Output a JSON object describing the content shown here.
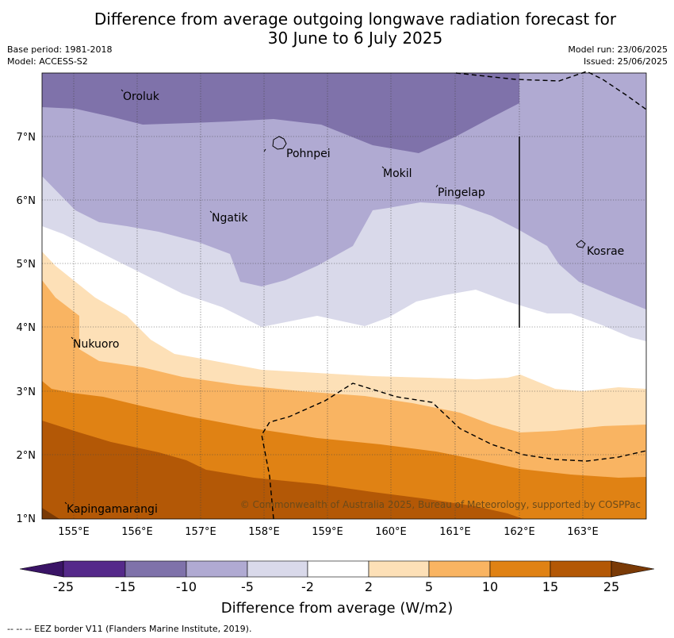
{
  "header": {
    "title_line1": "Difference from average outgoing longwave radiation forecast for",
    "title_line2": "30 June to 6 July 2025",
    "base_period": "Base period: 1981-2018",
    "model": "Model: ACCESS-S2",
    "model_run": "Model run: 23/06/2025",
    "issued": "Issued: 25/06/2025"
  },
  "map": {
    "lon_range": [
      154.5,
      164.0
    ],
    "lat_range": [
      1.0,
      8.0
    ],
    "x_ticks": [
      "155°E",
      "156°E",
      "157°E",
      "158°E",
      "159°E",
      "160°E",
      "161°E",
      "162°E",
      "163°E"
    ],
    "y_ticks": [
      "1°N",
      "2°N",
      "3°N",
      "4°N",
      "5°N",
      "6°N",
      "7°N"
    ],
    "grid": "dotted",
    "places": [
      {
        "name": "Oroluk"
      },
      {
        "name": "Pohnpei"
      },
      {
        "name": "Mokil"
      },
      {
        "name": "Pingelap"
      },
      {
        "name": "Ngatik"
      },
      {
        "name": "Kosrae"
      },
      {
        "name": "Nukuoro"
      },
      {
        "name": "Kapingamarangi"
      }
    ],
    "credit": "© Commonwealth of Australia 2025, Bureau of Meteorology, supported by COSPPac",
    "eez_line_style": "dashed"
  },
  "colorbar": {
    "ticks": [
      "-25",
      "-15",
      "-10",
      "-5",
      "-2",
      "2",
      "5",
      "10",
      "15",
      "25"
    ],
    "colors": [
      "#3a1466",
      "#55298a",
      "#7f72aa",
      "#b0aad2",
      "#d9d9ea",
      "#ffffff",
      "#fde0b7",
      "#f9b462",
      "#e08214",
      "#b35806",
      "#7a3a06"
    ],
    "extend": "both",
    "label": "Difference from average (W/m2)"
  },
  "footnote": "--  --  -- EEZ border V11 (Flanders Marine Institute, 2019)."
}
